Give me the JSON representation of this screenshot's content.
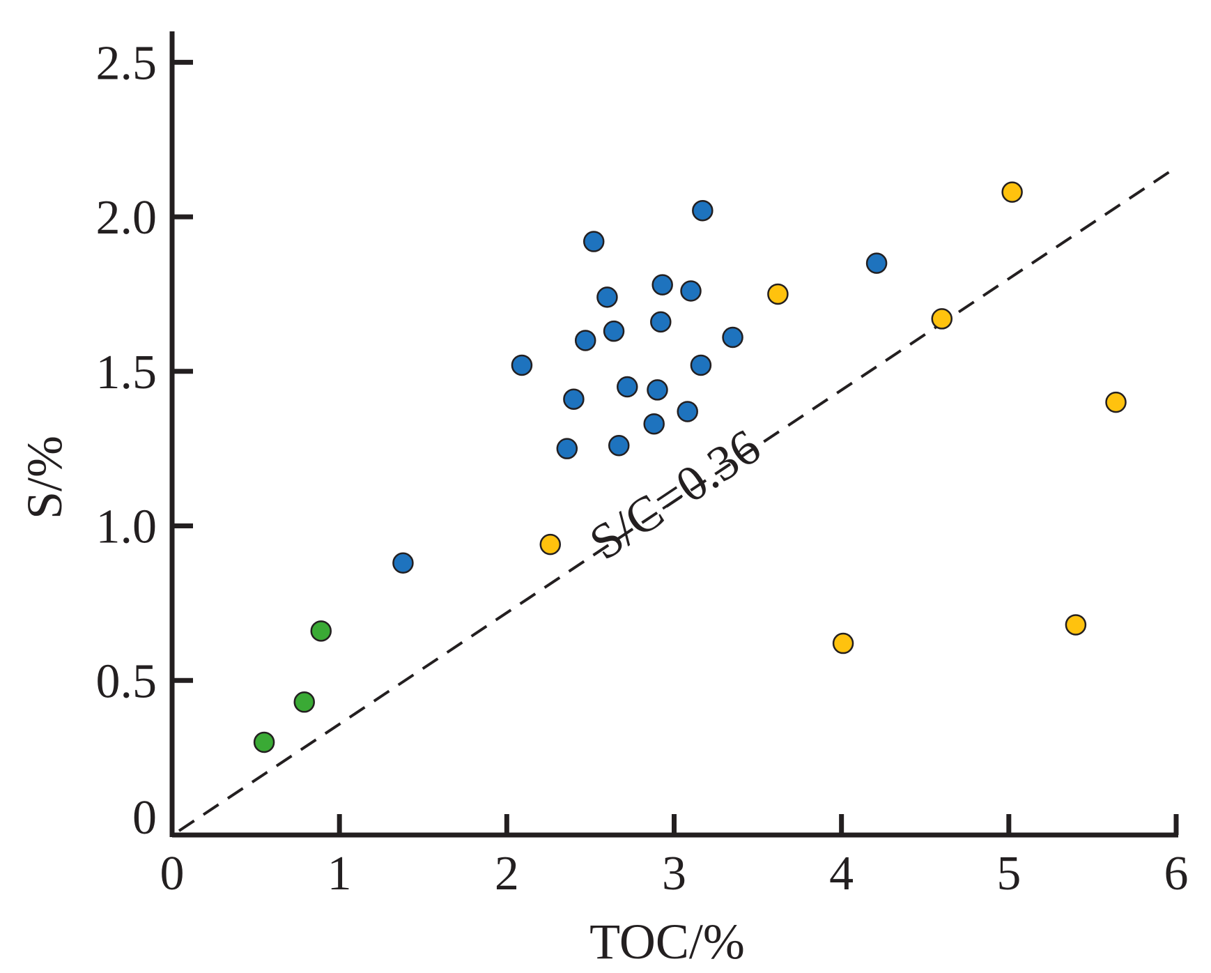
{
  "chart_data": {
    "type": "scatter",
    "title": "",
    "xlabel": "TOC/%",
    "ylabel": "S/%",
    "xlim": [
      0,
      6
    ],
    "ylim": [
      0,
      2.6
    ],
    "x_ticks": [
      0,
      1,
      2,
      3,
      4,
      5,
      6
    ],
    "x_tick_labels": [
      "0",
      "1",
      "2",
      "3",
      "4",
      "5",
      "6"
    ],
    "y_ticks": [
      0,
      0.5,
      1.0,
      1.5,
      2.0,
      2.5
    ],
    "y_tick_labels": [
      "0",
      "0.5",
      "1.0",
      "1.5",
      "2.0",
      "2.5"
    ],
    "grid": false,
    "legend": "none",
    "reference_line": {
      "label": "S/C=0.36",
      "slope": 0.36,
      "x_range": [
        0,
        6
      ],
      "style": "dashed",
      "color": "#231f20"
    },
    "series": [
      {
        "name": "green",
        "color": "#3aaa35",
        "points": [
          {
            "x": 0.55,
            "y": 0.3
          },
          {
            "x": 0.79,
            "y": 0.43
          },
          {
            "x": 0.89,
            "y": 0.66
          }
        ]
      },
      {
        "name": "blue",
        "color": "#1e73be",
        "points": [
          {
            "x": 1.38,
            "y": 0.88
          },
          {
            "x": 2.09,
            "y": 1.52
          },
          {
            "x": 2.36,
            "y": 1.25
          },
          {
            "x": 2.4,
            "y": 1.41
          },
          {
            "x": 2.47,
            "y": 1.6
          },
          {
            "x": 2.52,
            "y": 1.92
          },
          {
            "x": 2.6,
            "y": 1.74
          },
          {
            "x": 2.64,
            "y": 1.63
          },
          {
            "x": 2.67,
            "y": 1.26
          },
          {
            "x": 2.72,
            "y": 1.45
          },
          {
            "x": 2.88,
            "y": 1.33
          },
          {
            "x": 2.9,
            "y": 1.44
          },
          {
            "x": 2.92,
            "y": 1.66
          },
          {
            "x": 2.93,
            "y": 1.78
          },
          {
            "x": 3.08,
            "y": 1.37
          },
          {
            "x": 3.1,
            "y": 1.76
          },
          {
            "x": 3.16,
            "y": 1.52
          },
          {
            "x": 3.17,
            "y": 2.02
          },
          {
            "x": 3.35,
            "y": 1.61
          },
          {
            "x": 4.21,
            "y": 1.85
          }
        ]
      },
      {
        "name": "yellow",
        "color": "#ffc20e",
        "points": [
          {
            "x": 2.26,
            "y": 0.94
          },
          {
            "x": 3.62,
            "y": 1.75
          },
          {
            "x": 4.01,
            "y": 0.62
          },
          {
            "x": 4.6,
            "y": 1.67
          },
          {
            "x": 5.02,
            "y": 2.08
          },
          {
            "x": 5.4,
            "y": 0.68
          },
          {
            "x": 5.64,
            "y": 1.4
          }
        ]
      }
    ]
  }
}
